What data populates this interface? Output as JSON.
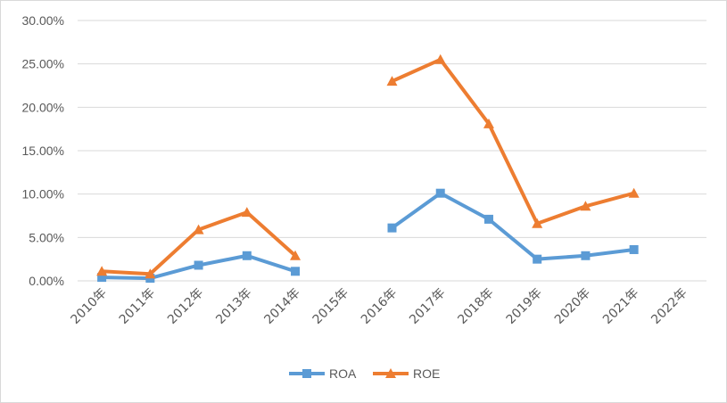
{
  "chart_data": {
    "type": "line",
    "title": "",
    "xlabel": "",
    "ylabel": "",
    "categories": [
      "2010年",
      "2011年",
      "2012年",
      "2013年",
      "2014年",
      "2015年",
      "2016年",
      "2017年",
      "2018年",
      "2019年",
      "2020年",
      "2021年",
      "2022年"
    ],
    "y_ticks": [
      "0.00%",
      "5.00%",
      "10.00%",
      "15.00%",
      "20.00%",
      "25.00%",
      "30.00%"
    ],
    "ylim": [
      0,
      30
    ],
    "grid": true,
    "legend_position": "bottom",
    "series": [
      {
        "name": "ROA",
        "color": "#5B9BD5",
        "marker": "square",
        "values": [
          0.4,
          0.3,
          1.8,
          2.9,
          1.1,
          null,
          6.1,
          10.1,
          7.1,
          2.5,
          2.9,
          3.6,
          null
        ]
      },
      {
        "name": "ROE",
        "color": "#ED7D31",
        "marker": "triangle",
        "values": [
          1.1,
          0.8,
          5.9,
          7.9,
          2.9,
          null,
          23.0,
          25.5,
          18.1,
          6.6,
          8.6,
          10.1,
          null
        ]
      }
    ]
  }
}
